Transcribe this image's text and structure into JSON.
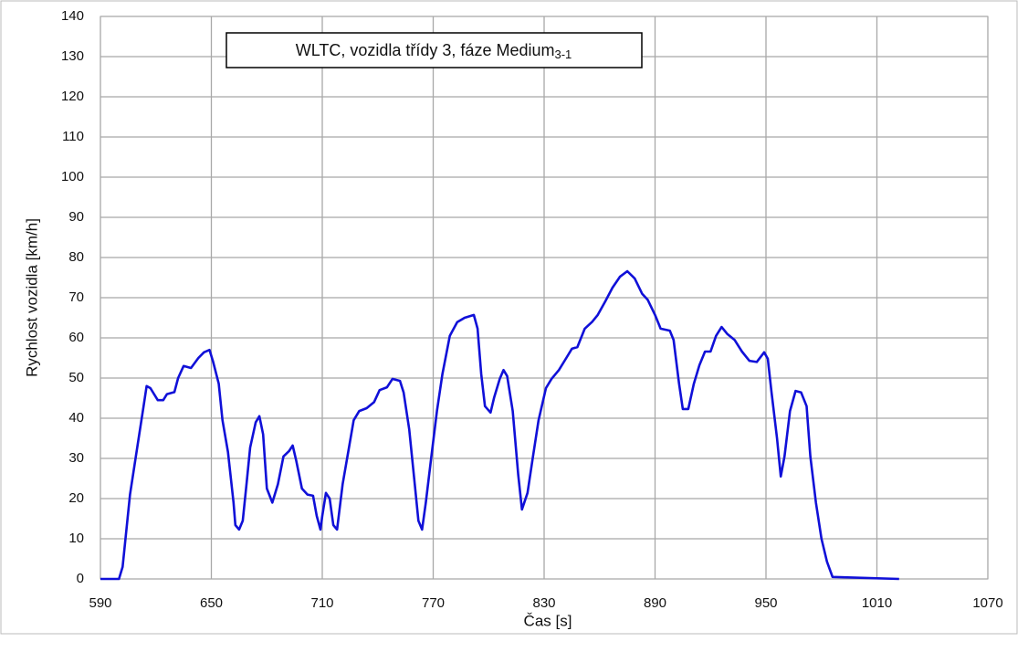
{
  "chart_data": {
    "type": "line",
    "title": "WLTC, vozidla třídy 3, fáze Medium",
    "title_subscript": "3-1",
    "xlabel": "Čas [s]",
    "ylabel": "Rychlost vozidla [km/h]",
    "xlim": [
      590,
      1070
    ],
    "xticks": [
      590,
      650,
      710,
      770,
      830,
      890,
      950,
      1010,
      1070
    ],
    "ylim": [
      0,
      140
    ],
    "yticks": [
      0,
      10,
      20,
      30,
      40,
      50,
      60,
      70,
      80,
      90,
      100,
      110,
      120,
      130,
      140
    ],
    "grid": true,
    "color": "#1010d8",
    "x": [
      590,
      600,
      602,
      606,
      610,
      613,
      615,
      617,
      621,
      624,
      626,
      630,
      632,
      635,
      639,
      643,
      646,
      649,
      651,
      654,
      656,
      659,
      662,
      663,
      665,
      667,
      669,
      671,
      674,
      676,
      678,
      680,
      683,
      686,
      689,
      692,
      694,
      696,
      699,
      702,
      705,
      707,
      709,
      710,
      712,
      714,
      716,
      718,
      721,
      724,
      727,
      730,
      734,
      738,
      741,
      745,
      748,
      752,
      754,
      757,
      760,
      762,
      764,
      766,
      769,
      772,
      775,
      779,
      783,
      787,
      792,
      794,
      796,
      798,
      801,
      803,
      806,
      808,
      810,
      813,
      816,
      818,
      821,
      824,
      827,
      831,
      834,
      838,
      842,
      845,
      848,
      852,
      856,
      859,
      863,
      867,
      871,
      875,
      879,
      883,
      886,
      890,
      893,
      898,
      900,
      903,
      905,
      908,
      911,
      914,
      917,
      920,
      923,
      926,
      929,
      933,
      937,
      941,
      945,
      949,
      951,
      953,
      956,
      958,
      960,
      963,
      966,
      969,
      972,
      974,
      977,
      980,
      983,
      986,
      1022
    ],
    "values": [
      0,
      0,
      3,
      21,
      33,
      42,
      48,
      47.5,
      44.5,
      44.5,
      46,
      46.5,
      50,
      53,
      52.5,
      55,
      56.4,
      57,
      54,
      48.6,
      39.5,
      31.6,
      19,
      13.4,
      12.3,
      14.5,
      23.6,
      32.7,
      39,
      40.5,
      36,
      22.5,
      19,
      23.6,
      30.5,
      31.8,
      33.2,
      29.3,
      22.5,
      21,
      20.7,
      15.7,
      12.3,
      15.7,
      21.4,
      20,
      13.4,
      12.3,
      23.6,
      31.6,
      39.5,
      41.8,
      42.5,
      44,
      47,
      47.7,
      49.8,
      49.3,
      46.4,
      37.3,
      23.6,
      14.5,
      12.3,
      19,
      30.5,
      41.8,
      51,
      60.5,
      63.9,
      65,
      65.7,
      62.3,
      51,
      43,
      41.4,
      45.2,
      49.8,
      52,
      50.5,
      41.8,
      26,
      17.3,
      21.4,
      30.5,
      39.5,
      47.5,
      49.8,
      52,
      55,
      57.3,
      57.7,
      62.3,
      64,
      65.7,
      69,
      72.5,
      75.2,
      76.6,
      74.8,
      71,
      69.5,
      65.7,
      62.3,
      61.8,
      59.5,
      48.6,
      42.3,
      42.3,
      48.6,
      53.2,
      56.6,
      56.6,
      60.5,
      62.7,
      61,
      59.5,
      56.6,
      54.3,
      54,
      56.4,
      54.8,
      46.4,
      35,
      25.5,
      30.5,
      41.8,
      46.8,
      46.4,
      43,
      30.5,
      19,
      10,
      4.3,
      0.5,
      0
    ]
  }
}
